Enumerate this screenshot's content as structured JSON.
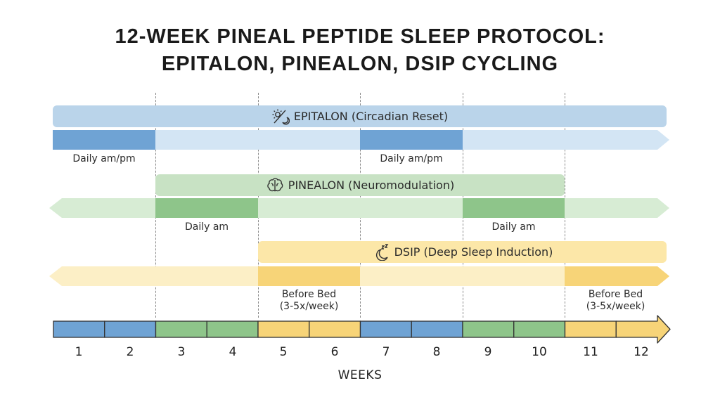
{
  "title_line1": "12-WEEK PINEAL PEPTIDE SLEEP PROTOCOL:",
  "title_line2": "EPITALON, PINEALON, DSIP CYCLING",
  "colors": {
    "epitalon_band": "#bad4ea",
    "epitalon_arrow": "#d3e5f4",
    "epitalon_active": "#6fa3d4",
    "pinealon_band": "#c8e2c4",
    "pinealon_arrow": "#d7ecd4",
    "pinealon_active": "#8ec58a",
    "dsip_band": "#fce7a8",
    "dsip_arrow": "#fcefc6",
    "dsip_active": "#f7d478"
  },
  "lanes": [
    {
      "id": "epitalon",
      "icon": "sun-moon-icon",
      "name": "EPITALON (Circadian Reset)",
      "active_weeks": [
        [
          1,
          2
        ],
        [
          7,
          8
        ]
      ],
      "labels": [
        "Daily am/pm",
        "Daily am/pm"
      ]
    },
    {
      "id": "pinealon",
      "icon": "brain-icon",
      "name": "PINEALON (Neuromodulation)",
      "active_weeks": [
        [
          3,
          4
        ],
        [
          9,
          10
        ]
      ],
      "labels": [
        "Daily am",
        "Daily am"
      ]
    },
    {
      "id": "dsip",
      "icon": "sleep-moon-icon",
      "name": "DSIP (Deep Sleep Induction)",
      "active_weeks": [
        [
          5,
          6
        ],
        [
          11,
          12
        ]
      ],
      "labels": [
        "Before Bed\n(3-5x/week)",
        "Before Bed\n(3-5x/week)"
      ]
    }
  ],
  "weeks": [
    "1",
    "2",
    "3",
    "4",
    "5",
    "6",
    "7",
    "8",
    "9",
    "10",
    "11",
    "12"
  ],
  "week_colors": [
    "blue",
    "blue",
    "green",
    "green",
    "yellow",
    "yellow",
    "blue",
    "blue",
    "green",
    "green",
    "yellow",
    "yellow"
  ],
  "axis_label": "WEEKS"
}
